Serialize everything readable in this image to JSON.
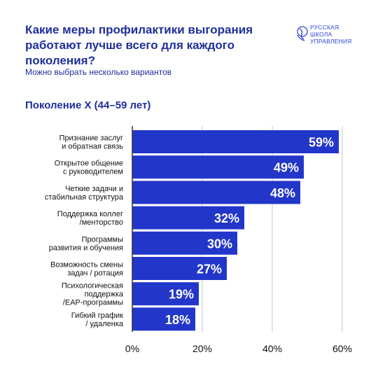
{
  "header": {
    "title": "Какие меры профилактики выгорания работают лучше всего для каждого поколения?",
    "subtitle": "Можно выбрать несколько вариантов"
  },
  "logo": {
    "lines": [
      "РУССКАЯ",
      "ШКОЛА",
      "УПРАВЛЕНИЯ"
    ]
  },
  "colors": {
    "bar": "#2236c9",
    "text": "#1f2f9c",
    "grid": "#bfc6d6"
  },
  "chart_data": {
    "type": "bar",
    "orientation": "horizontal",
    "title": "Поколение X (44–59 лет)",
    "categories": [
      [
        "Признание заслуг",
        "и обратная связь"
      ],
      [
        "Открытое общение",
        "с руководителем"
      ],
      [
        "Четкие задачи и",
        "стабильная структура"
      ],
      [
        "Поддержка коллег",
        "/менторство"
      ],
      [
        "Программы",
        "развития и обучения"
      ],
      [
        "Возможность смены",
        "задач / ротация"
      ],
      [
        "Психологическая",
        "поддержка",
        "/EAP-программы"
      ],
      [
        "Гибкий график",
        "/ удаленка"
      ]
    ],
    "values": [
      59,
      49,
      48,
      32,
      30,
      27,
      19,
      18
    ],
    "value_labels": [
      "59%",
      "49%",
      "48%",
      "32%",
      "30%",
      "27%",
      "19%",
      "18%"
    ],
    "xlim": [
      0,
      60
    ],
    "ticks": [
      0,
      20,
      40,
      60
    ],
    "tick_labels": [
      "0%",
      "20%",
      "40%",
      "60%"
    ],
    "grid": true
  }
}
